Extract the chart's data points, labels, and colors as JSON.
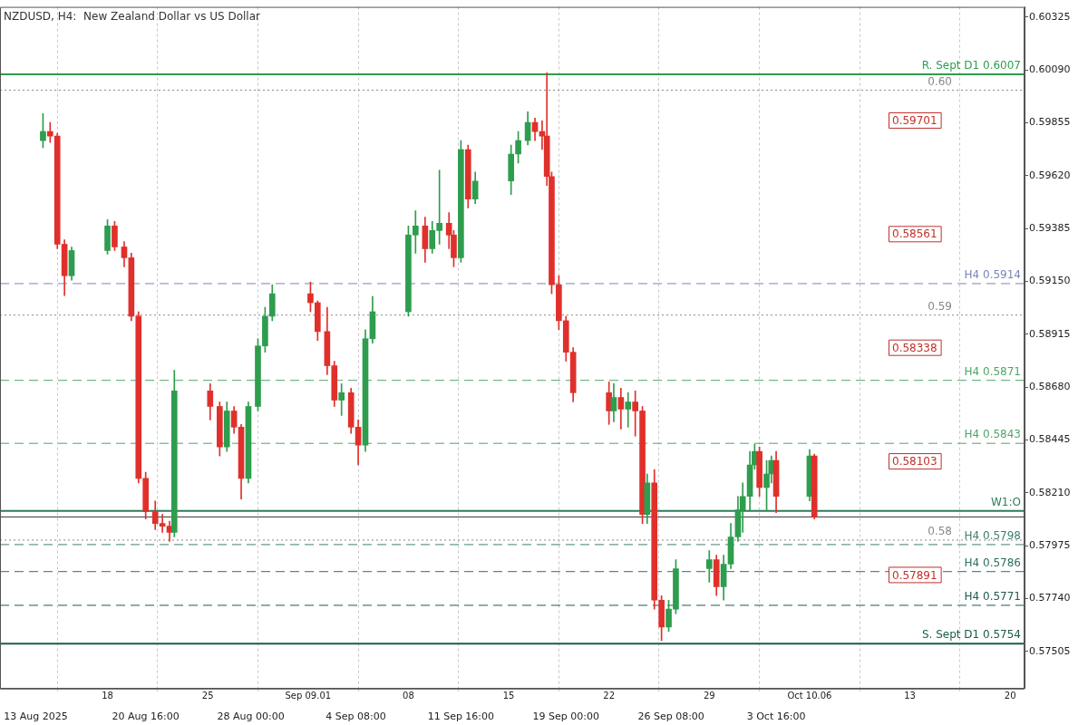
{
  "chart_data": {
    "type": "candlestick",
    "title": "NZDUSD, H4:  New Zealand Dollar vs US Dollar",
    "x": [
      "2025-08-13T12:00",
      "2025-08-14T00:00",
      "2025-08-14T12:00",
      "2025-08-15T00:00",
      "2025-08-15T12:00",
      "2025-08-18T00:00",
      "2025-08-18T12:00",
      "2025-08-19T04:00",
      "2025-08-19T16:00",
      "2025-08-20T04:00",
      "2025-08-20T16:00",
      "2025-08-21T08:00",
      "2025-08-21T20:00",
      "2025-08-22T08:00",
      "2025-08-22T16:00",
      "2025-08-25T04:00",
      "2025-08-25T20:00",
      "2025-08-26T08:00",
      "2025-08-26T20:00",
      "2025-08-27T08:00",
      "2025-08-27T20:00",
      "2025-08-28T12:00",
      "2025-08-29T00:00",
      "2025-08-29T12:00",
      "2025-09-01T04:00",
      "2025-09-01T16:00",
      "2025-09-02T08:00",
      "2025-09-02T20:00",
      "2025-09-03T08:00",
      "2025-09-04T00:00",
      "2025-09-04T12:00",
      "2025-09-05T00:00",
      "2025-09-05T12:00",
      "2025-09-08T00:00",
      "2025-09-08T12:00",
      "2025-09-09T04:00",
      "2025-09-09T16:00",
      "2025-09-10T04:00",
      "2025-09-10T20:00",
      "2025-09-11T04:00",
      "2025-09-11T16:00",
      "2025-09-12T04:00",
      "2025-09-12T16:00",
      "2025-09-15T04:00",
      "2025-09-15T16:00",
      "2025-09-16T08:00",
      "2025-09-16T20:00",
      "2025-09-17T08:00",
      "2025-09-17T16:00",
      "2025-09-18T00:00",
      "2025-09-18T12:00",
      "2025-09-19T00:00",
      "2025-09-19T12:00",
      "2025-09-22T00:00",
      "2025-09-22T08:00",
      "2025-09-22T20:00",
      "2025-09-23T08:00",
      "2025-09-23T20:00",
      "2025-09-24T08:00",
      "2025-09-24T16:00",
      "2025-09-25T04:00",
      "2025-09-25T16:00",
      "2025-09-26T04:00",
      "2025-09-26T16:00",
      "2025-09-29T00:00",
      "2025-09-29T12:00",
      "2025-09-30T00:00",
      "2025-09-30T12:00",
      "2025-10-01T00:00",
      "2025-10-01T08:00",
      "2025-10-01T20:00",
      "2025-10-02T04:00",
      "2025-10-02T12:00",
      "2025-10-03T00:00",
      "2025-10-03T08:00",
      "2025-10-03T16:00",
      "2025-10-06T00:00",
      "2025-10-06T08:00"
    ],
    "ohlc": [
      [
        0.59776,
        0.59896,
        0.59744,
        0.59816
      ],
      [
        0.59816,
        0.59856,
        0.59768,
        0.59796
      ],
      [
        0.59796,
        0.59808,
        0.59295,
        0.59315
      ],
      [
        0.59315,
        0.59335,
        0.59087,
        0.59175
      ],
      [
        0.59175,
        0.59303,
        0.59155,
        0.59287
      ],
      [
        0.59287,
        0.59424,
        0.59271,
        0.59396
      ],
      [
        0.59396,
        0.59416,
        0.59287,
        0.59303
      ],
      [
        0.59303,
        0.59327,
        0.59215,
        0.59255
      ],
      [
        0.59255,
        0.59275,
        0.58975,
        0.58995
      ],
      [
        0.58995,
        0.59015,
        0.58254,
        0.58274
      ],
      [
        0.58274,
        0.58302,
        0.58094,
        0.58126
      ],
      [
        0.58126,
        0.58174,
        0.58046,
        0.58074
      ],
      [
        0.58074,
        0.58114,
        0.58034,
        0.58062
      ],
      [
        0.58062,
        0.58084,
        0.57994,
        0.58034
      ],
      [
        0.58034,
        0.58755,
        0.58014,
        0.58663
      ],
      [
        0.58663,
        0.58695,
        0.58534,
        0.58594
      ],
      [
        0.58594,
        0.58614,
        0.58374,
        0.58414
      ],
      [
        0.58414,
        0.58614,
        0.58394,
        0.58574
      ],
      [
        0.58574,
        0.58594,
        0.58474,
        0.58502
      ],
      [
        0.58502,
        0.58514,
        0.58182,
        0.58274
      ],
      [
        0.58274,
        0.58614,
        0.58254,
        0.58594
      ],
      [
        0.58594,
        0.58895,
        0.58574,
        0.58863
      ],
      [
        0.58863,
        0.59035,
        0.58835,
        0.58995
      ],
      [
        0.58995,
        0.59135,
        0.58975,
        0.59095
      ],
      [
        0.59095,
        0.59147,
        0.59015,
        0.59055
      ],
      [
        0.59055,
        0.59063,
        0.58887,
        0.58927
      ],
      [
        0.58927,
        0.59035,
        0.58735,
        0.58775
      ],
      [
        0.58775,
        0.58795,
        0.58594,
        0.58622
      ],
      [
        0.58622,
        0.58695,
        0.58554,
        0.58655
      ],
      [
        0.58655,
        0.58675,
        0.58474,
        0.58502
      ],
      [
        0.58502,
        0.58534,
        0.58334,
        0.58422
      ],
      [
        0.58422,
        0.58935,
        0.58394,
        0.58895
      ],
      [
        0.58895,
        0.59083,
        0.58875,
        0.59015
      ],
      [
        0.59015,
        0.59396,
        0.58995,
        0.59356
      ],
      [
        0.59356,
        0.59464,
        0.59275,
        0.59396
      ],
      [
        0.59396,
        0.59436,
        0.59235,
        0.59295
      ],
      [
        0.59295,
        0.59416,
        0.59275,
        0.59376
      ],
      [
        0.59376,
        0.59644,
        0.59315,
        0.59408
      ],
      [
        0.59408,
        0.59456,
        0.59295,
        0.59356
      ],
      [
        0.59356,
        0.59376,
        0.59215,
        0.59255
      ],
      [
        0.59255,
        0.59776,
        0.59235,
        0.59736
      ],
      [
        0.59736,
        0.59756,
        0.59476,
        0.59516
      ],
      [
        0.59516,
        0.59636,
        0.59496,
        0.59596
      ],
      [
        0.59596,
        0.59756,
        0.59536,
        0.59716
      ],
      [
        0.59716,
        0.59816,
        0.59676,
        0.59776
      ],
      [
        0.59776,
        0.59904,
        0.59756,
        0.59856
      ],
      [
        0.59856,
        0.59876,
        0.59776,
        0.59816
      ],
      [
        0.59816,
        0.59864,
        0.59736,
        0.59796
      ],
      [
        0.59796,
        0.60077,
        0.59576,
        0.59616
      ],
      [
        0.59616,
        0.59636,
        0.59095,
        0.59135
      ],
      [
        0.59135,
        0.59175,
        0.58935,
        0.58975
      ],
      [
        0.58975,
        0.58995,
        0.58795,
        0.58835
      ],
      [
        0.58835,
        0.58855,
        0.58614,
        0.58655
      ],
      [
        0.58655,
        0.58703,
        0.58514,
        0.58574
      ],
      [
        0.58574,
        0.58695,
        0.58526,
        0.58634
      ],
      [
        0.58634,
        0.58675,
        0.58494,
        0.58582
      ],
      [
        0.58582,
        0.58655,
        0.58502,
        0.58614
      ],
      [
        0.58614,
        0.58663,
        0.58462,
        0.58574
      ],
      [
        0.58574,
        0.58594,
        0.58074,
        0.58114
      ],
      [
        0.58114,
        0.58294,
        0.58074,
        0.58254
      ],
      [
        0.58254,
        0.58314,
        0.57693,
        0.57733
      ],
      [
        0.57733,
        0.57753,
        0.57553,
        0.57613
      ],
      [
        0.57613,
        0.57733,
        0.57593,
        0.57693
      ],
      [
        0.57693,
        0.57913,
        0.57673,
        0.57873
      ],
      [
        0.57873,
        0.57953,
        0.57813,
        0.57913
      ],
      [
        0.57913,
        0.57933,
        0.57753,
        0.57793
      ],
      [
        0.57793,
        0.57933,
        0.57733,
        0.57893
      ],
      [
        0.57893,
        0.58074,
        0.57873,
        0.58014
      ],
      [
        0.58014,
        0.58194,
        0.57994,
        0.58134
      ],
      [
        0.58134,
        0.58254,
        0.58034,
        0.58194
      ],
      [
        0.58194,
        0.58394,
        0.58134,
        0.58334
      ],
      [
        0.58334,
        0.58426,
        0.58314,
        0.58394
      ],
      [
        0.58394,
        0.58414,
        0.58194,
        0.58234
      ],
      [
        0.58234,
        0.58354,
        0.58134,
        0.58294
      ],
      [
        0.58294,
        0.58374,
        0.58254,
        0.58354
      ],
      [
        0.58354,
        0.58394,
        0.58122,
        0.58194
      ],
      [
        0.58194,
        0.58402,
        0.58174,
        0.58374
      ],
      [
        0.58374,
        0.58382,
        0.58094,
        0.58103
      ]
    ],
    "colors": [
      "#2e9d4e",
      "#e0302b",
      "#e0302b",
      "#e0302b",
      "#2e9d4e",
      "#2e9d4e",
      "#e0302b",
      "#e0302b",
      "#e0302b",
      "#e0302b",
      "#e0302b",
      "#e0302b",
      "#e0302b",
      "#e0302b",
      "#2e9d4e",
      "#e0302b",
      "#e0302b",
      "#2e9d4e",
      "#e0302b",
      "#e0302b",
      "#2e9d4e",
      "#2e9d4e",
      "#2e9d4e",
      "#2e9d4e",
      "#e0302b",
      "#e0302b",
      "#e0302b",
      "#e0302b",
      "#2e9d4e",
      "#e0302b",
      "#e0302b",
      "#2e9d4e",
      "#2e9d4e",
      "#2e9d4e",
      "#2e9d4e",
      "#e0302b",
      "#2e9d4e",
      "#2e9d4e",
      "#e0302b",
      "#e0302b",
      "#2e9d4e",
      "#e0302b",
      "#2e9d4e",
      "#2e9d4e",
      "#2e9d4e",
      "#2e9d4e",
      "#e0302b",
      "#e0302b",
      "#e0302b",
      "#e0302b",
      "#e0302b",
      "#e0302b",
      "#e0302b",
      "#e0302b",
      "#2e9d4e",
      "#e0302b",
      "#2e9d4e",
      "#e0302b",
      "#e0302b",
      "#2e9d4e",
      "#e0302b",
      "#e0302b",
      "#2e9d4e",
      "#2e9d4e",
      "#2e9d4e",
      "#e0302b",
      "#2e9d4e",
      "#2e9d4e",
      "#2e9d4e",
      "#2e9d4e",
      "#2e9d4e",
      "#2e9d4e",
      "#e0302b",
      "#2e9d4e",
      "#2e9d4e",
      "#e0302b",
      "#2e9d4e",
      "#e0302b"
    ],
    "xlim": [
      "2025-08-10T12:00",
      "2025-10-21T00:00"
    ],
    "xticks": [
      {
        "value": "2025-08-18",
        "label": "18"
      },
      {
        "value": "2025-08-25",
        "label": "25"
      },
      {
        "value": "2025-09-01",
        "label": "Sep 09.01"
      },
      {
        "value": "2025-09-08",
        "label": "08"
      },
      {
        "value": "2025-09-15",
        "label": "15"
      },
      {
        "value": "2025-09-22",
        "label": "22"
      },
      {
        "value": "2025-09-29",
        "label": "29"
      },
      {
        "value": "2025-10-06",
        "label": "Oct 10.06"
      },
      {
        "value": "2025-10-13",
        "label": "13"
      },
      {
        "value": "2025-10-20",
        "label": "20"
      }
    ],
    "x2lim": [
      "2025-08-10T12:00",
      "2025-10-21T00:00"
    ],
    "x2ticks": [
      {
        "value": "2025-08-13T00:00",
        "label": "13 Aug 2025"
      },
      {
        "value": "2025-08-20T16:00",
        "label": "20 Aug 16:00"
      },
      {
        "value": "2025-08-28T00:00",
        "label": "28 Aug 00:00"
      },
      {
        "value": "2025-09-04T08:00",
        "label": "4 Sep 08:00"
      },
      {
        "value": "2025-09-11T16:00",
        "label": "11 Sep 16:00"
      },
      {
        "value": "2025-09-19T00:00",
        "label": "19 Sep 00:00"
      },
      {
        "value": "2025-09-26T08:00",
        "label": "26 Sep 08:00"
      },
      {
        "value": "2025-10-03T16:00",
        "label": "3 Oct 16:00"
      }
    ],
    "ylim": [
      0.5734,
      0.6037
    ],
    "yticks": [
      0.57505,
      {
        "value": 0.5774,
        "label": "0.57740"
      },
      0.57975,
      {
        "value": 0.5821,
        "label": "0.58210"
      },
      0.58445,
      {
        "value": 0.5868,
        "label": "0.58680"
      },
      0.58915,
      {
        "value": 0.5915,
        "label": "0.59150"
      },
      0.59385,
      {
        "value": 0.5962,
        "label": "0.59620"
      },
      0.59855,
      {
        "value": 0.6009,
        "label": "0.60090"
      },
      0.60325
    ],
    "grid": "x",
    "ref_lines": [
      {
        "axis": "y",
        "value": 0.6007,
        "label": "R. Sept D1 0.6007",
        "color": "#2e9d4e",
        "line_style": "solid"
      },
      {
        "axis": "y",
        "value": 0.6,
        "label": "0.60",
        "color": "#888888",
        "line_style": "dotted"
      },
      {
        "axis": "y",
        "value": 0.5914,
        "label": "H4 0.5914",
        "color": "#7b84b8",
        "line_style": "dashed"
      },
      {
        "axis": "y",
        "value": 0.59,
        "label": "0.59",
        "color": "#888888",
        "line_style": "dotted"
      },
      {
        "axis": "y",
        "value": 0.5871,
        "label": "H4 0.5871",
        "color": "#4fa56a",
        "line_style": "dashed"
      },
      {
        "axis": "y",
        "value": 0.5843,
        "label": "H4 0.5843",
        "color": "#4fa56a",
        "line_style": "dashed"
      },
      {
        "axis": "y",
        "value": 0.5813,
        "label": "W1:O",
        "color": "#2f7d5a",
        "line_style": "solid"
      },
      {
        "axis": "y",
        "value": 0.58103,
        "color": "#333333",
        "line_style": "solid"
      },
      {
        "axis": "y",
        "value": 0.58,
        "label": "0.58",
        "color": "#888888",
        "line_style": "dotted"
      },
      {
        "axis": "y",
        "value": 0.5798,
        "label": "H4 0.5798",
        "color": "#3f7f70",
        "line_style": "dashed"
      },
      {
        "axis": "y",
        "value": 0.5786,
        "label": "H4 0.5786",
        "color": "#2e6e60",
        "line_style": "dashed"
      },
      {
        "axis": "y",
        "value": 0.5771,
        "label": "H4 0.5771",
        "color": "#1f5a4e",
        "line_style": "dashed"
      },
      {
        "axis": "y",
        "value": 0.5754,
        "label": "S. Sept D1 0.5754",
        "color": "#1a5c4a",
        "line_style": "solid"
      }
    ],
    "annotations": [
      "0.59701",
      "0.58561",
      "0.58338",
      "0.58103",
      "0.57891"
    ]
  }
}
